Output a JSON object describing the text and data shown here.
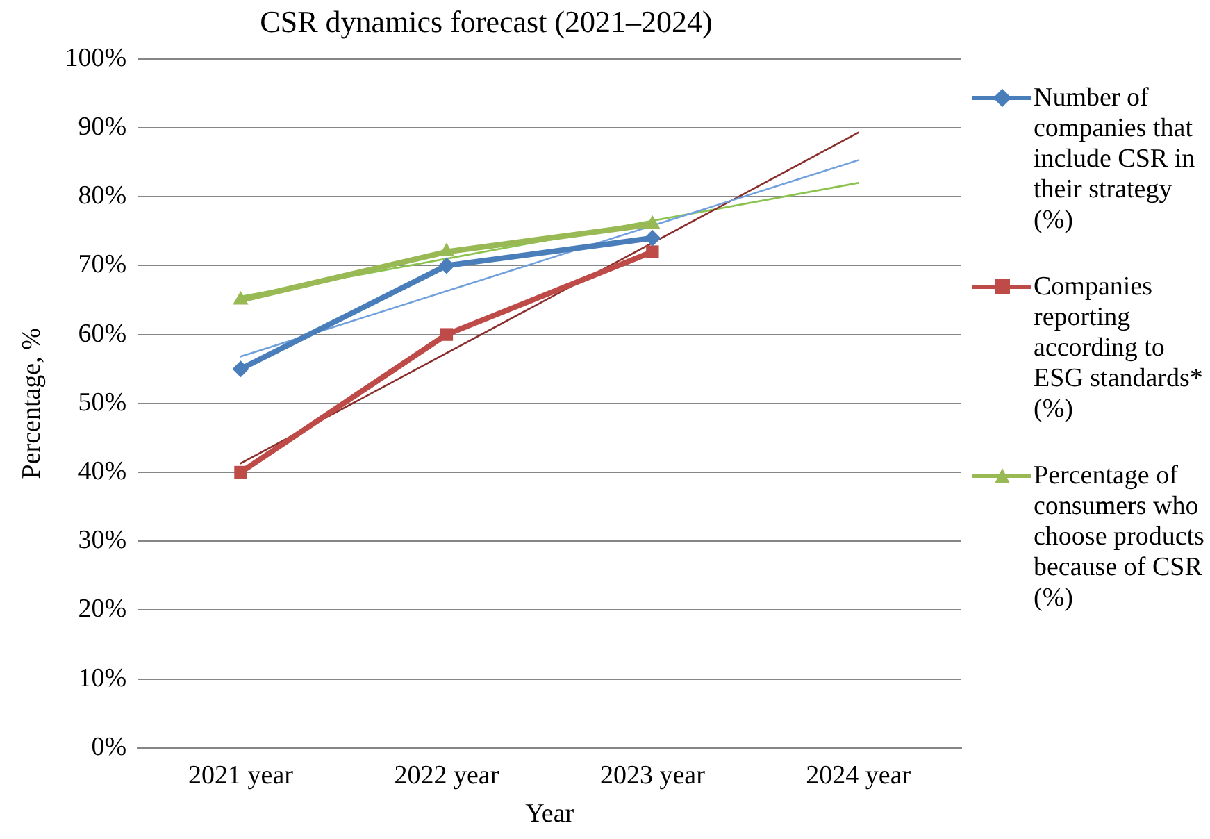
{
  "chart_data": {
    "type": "line",
    "title": "CSR dynamics forecast (2021–2024)",
    "xlabel": "Year",
    "ylabel": "Percentage, %",
    "categories": [
      "2021 year",
      "2022 year",
      "2023 year",
      "2024 year"
    ],
    "series": [
      {
        "name": "Number of companies that include CSR in their strategy (%)",
        "color": "#4a7ebb",
        "marker": "diamond",
        "values": [
          55,
          70,
          74,
          null
        ]
      },
      {
        "name": "Companies reporting according to ESG standards* (%)",
        "color": "#be4b48",
        "marker": "square",
        "values": [
          40,
          60,
          72,
          null
        ]
      },
      {
        "name": "Percentage of consumers who choose products because of CSR (%)",
        "color": "#98b954",
        "marker": "triangle",
        "values": [
          65,
          72,
          76,
          null
        ]
      },
      {
        "type": "line",
        "color": "#6f9fdc",
        "marker": "none",
        "x": [
          "2021 year",
          "2024 year"
        ],
        "values": [
          56.8,
          85.3
        ]
      },
      {
        "type": "line",
        "color": "#8b2d2b",
        "marker": "none",
        "x": [
          "2021 year",
          "2024 year"
        ],
        "values": [
          41.3,
          89.3
        ]
      },
      {
        "type": "line",
        "color": "#8cc34f",
        "marker": "none",
        "x": [
          "2021 year",
          "2024 year"
        ],
        "values": [
          65.5,
          82
        ]
      }
    ],
    "ylim": [
      0,
      100
    ],
    "yticks": [
      {
        "value": 0,
        "label": "0%"
      },
      {
        "value": 10,
        "label": "10%"
      },
      {
        "value": 20,
        "label": "20%"
      },
      {
        "value": 30,
        "label": "30%"
      },
      {
        "value": 40,
        "label": "40%"
      },
      {
        "value": 50,
        "label": "50%"
      },
      {
        "value": 60,
        "label": "60%"
      },
      {
        "value": 70,
        "label": "70%"
      },
      {
        "value": 80,
        "label": "80%"
      },
      {
        "value": 90,
        "label": "90%"
      },
      {
        "value": 100,
        "label": "100%"
      }
    ],
    "grid": "y",
    "legend": "right"
  }
}
